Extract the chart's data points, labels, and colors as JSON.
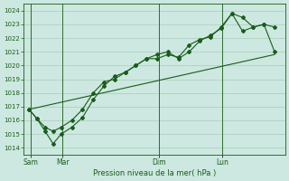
{
  "title": "Pression niveau de la mer( hPa )",
  "bg_color": "#cce8e0",
  "grid_color": "#aaccbb",
  "line_color": "#1a5c1a",
  "ylim": [
    1013.5,
    1024.5
  ],
  "yticks": [
    1014,
    1015,
    1016,
    1017,
    1018,
    1019,
    1020,
    1021,
    1022,
    1023,
    1024
  ],
  "xtick_labels": [
    "Sam",
    "Mar",
    "Dim",
    "Lun"
  ],
  "xtick_positions": [
    0.5,
    12.5,
    48.5,
    72.5
  ],
  "vline_positions": [
    0.5,
    12.5,
    48.5,
    72.5
  ],
  "xlim": [
    -2,
    96
  ],
  "line1_x": [
    0,
    3,
    6,
    9,
    12,
    16,
    20,
    24,
    28,
    32,
    36,
    40,
    44,
    48,
    52,
    56,
    60,
    64,
    68,
    72,
    76,
    80,
    84,
    88,
    92
  ],
  "line1_y": [
    1016.8,
    1016.1,
    1015.2,
    1014.3,
    1015.0,
    1015.5,
    1016.2,
    1017.5,
    1018.5,
    1019.2,
    1019.5,
    1020.0,
    1020.5,
    1020.8,
    1021.0,
    1020.5,
    1021.0,
    1021.8,
    1022.2,
    1022.7,
    1023.8,
    1023.5,
    1022.8,
    1023.0,
    1022.8
  ],
  "line2_x": [
    0,
    3,
    6,
    9,
    12,
    16,
    20,
    24,
    28,
    32,
    36,
    40,
    44,
    48,
    52,
    56,
    60,
    64,
    68,
    72,
    76,
    80,
    84,
    88,
    92
  ],
  "line2_y": [
    1016.8,
    1016.1,
    1015.5,
    1015.2,
    1015.5,
    1016.0,
    1016.8,
    1018.0,
    1018.8,
    1019.0,
    1019.5,
    1020.0,
    1020.5,
    1020.5,
    1020.8,
    1020.6,
    1021.5,
    1021.9,
    1022.1,
    1022.8,
    1023.8,
    1022.5,
    1022.8,
    1023.0,
    1021.0
  ],
  "line3_x": [
    0,
    92
  ],
  "line3_y": [
    1016.8,
    1020.8
  ],
  "figsize": [
    3.2,
    2.0
  ],
  "dpi": 100
}
